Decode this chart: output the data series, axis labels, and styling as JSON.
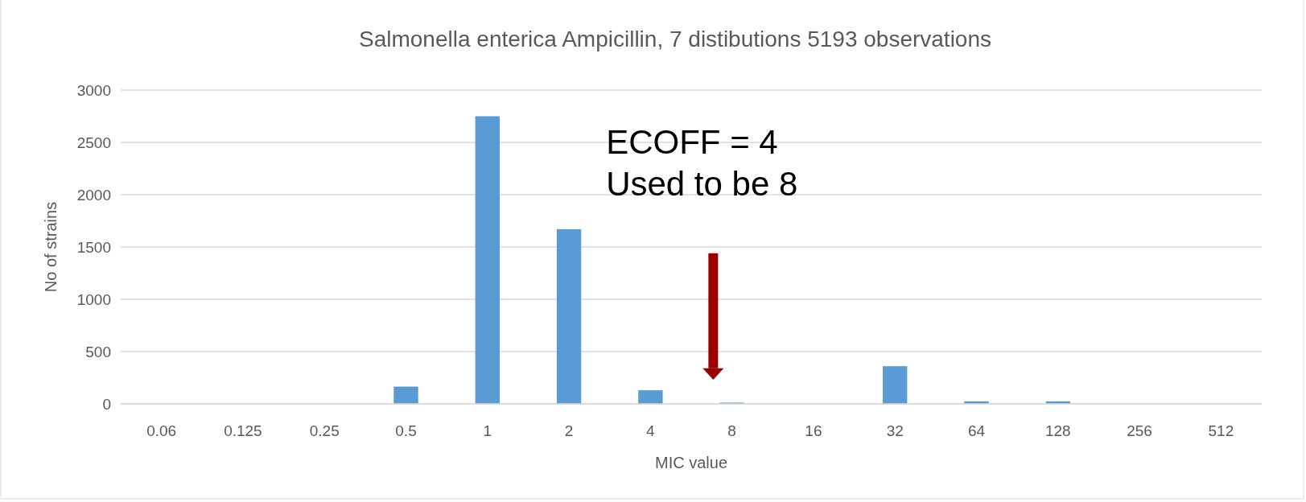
{
  "chart_data": {
    "type": "bar",
    "title": "Salmonella enterica Ampicillin, 7 distibutions 5193 observations",
    "xlabel": "MIC value",
    "ylabel": "No of strains",
    "categories": [
      "0.06",
      "0.125",
      "0.25",
      "0.5",
      "1",
      "2",
      "4",
      "8",
      "16",
      "32",
      "64",
      "128",
      "256",
      "512"
    ],
    "values": [
      0,
      0,
      0,
      165,
      2750,
      1670,
      130,
      12,
      0,
      360,
      24,
      24,
      0,
      0
    ],
    "color": "#5b9bd5",
    "ylim": [
      0,
      3000
    ],
    "yticks": [
      0,
      500,
      1000,
      1500,
      2000,
      2500,
      3000
    ],
    "grid": "y",
    "annotations": [
      "ECOFF = 4\nUsed to be 8"
    ]
  }
}
